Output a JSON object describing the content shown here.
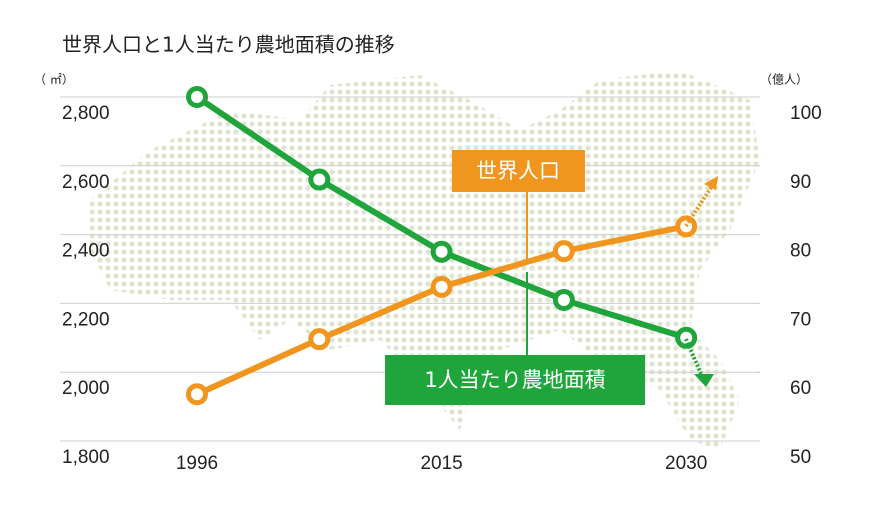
{
  "chart_data": {
    "type": "line",
    "title": "世界人口と1人当たり農地面積の推移",
    "y_unit": "（ ㎡）",
    "y2_unit": "（億人）",
    "categories": [
      "1996",
      null,
      "2015",
      null,
      "2030"
    ],
    "series": [
      {
        "name": "1人当たり農地面積",
        "color": "#1fa53c",
        "values": [
          2800,
          2560,
          2350,
          2210,
          2100
        ]
      },
      {
        "name": "世界人口",
        "color": "#f0961e",
        "values": [
          56.8,
          64.8,
          72.4,
          77.6,
          81.2
        ],
        "axis": "y2"
      }
    ],
    "ylim": [
      1800,
      2800
    ],
    "yticks": [
      {
        "value": 1800,
        "label": "1,800"
      },
      {
        "value": 2000,
        "label": "2,000"
      },
      {
        "value": 2200,
        "label": "2,200"
      },
      {
        "value": 2400,
        "label": "2,400"
      },
      {
        "value": 2600,
        "label": "2,600"
      },
      {
        "value": 2800,
        "label": "2,800"
      }
    ],
    "y2lim": [
      50,
      100
    ],
    "y2ticks": [
      50,
      60,
      70,
      80,
      90,
      100
    ],
    "grid": true
  }
}
